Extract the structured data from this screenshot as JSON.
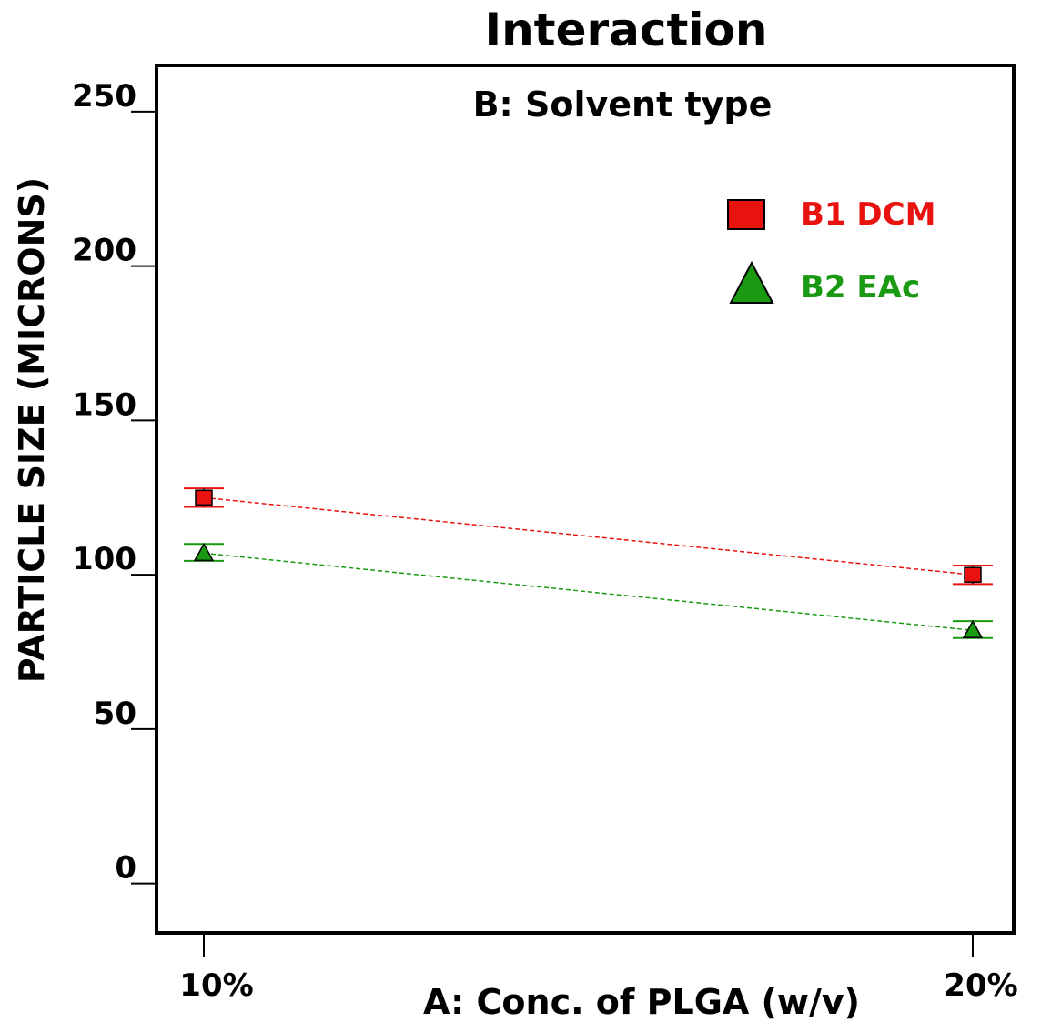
{
  "chart_data": {
    "type": "line",
    "title": "Interaction",
    "subtitle": "B: Solvent type",
    "xlabel": "A: Conc. of PLGA (w/v)",
    "ylabel": "PARTICLE SIZE (MICRONS)",
    "categories": [
      "10%",
      "20%"
    ],
    "yticks": [
      0,
      50,
      100,
      150,
      200,
      250
    ],
    "ylim": [
      -16,
      265
    ],
    "grid": false,
    "legend_position": "top-right",
    "series": [
      {
        "name": "B1 DCM",
        "marker": "square",
        "color": "#e8120f",
        "line_color": "#e8120f",
        "values": [
          125,
          100
        ],
        "error_low": [
          122,
          97
        ],
        "error_high": [
          128,
          103
        ]
      },
      {
        "name": "B2 EAc",
        "marker": "triangle",
        "color": "#1a9a12",
        "line_color": "#1a9a12",
        "values": [
          107,
          82
        ],
        "error_low": [
          104.5,
          79.5
        ],
        "error_high": [
          110,
          85
        ]
      }
    ]
  }
}
